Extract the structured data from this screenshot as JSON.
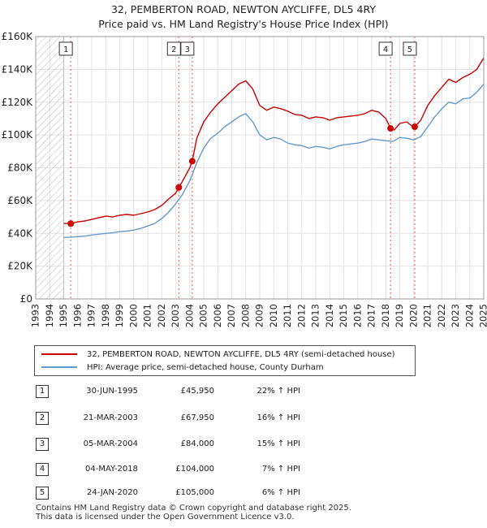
{
  "chart_data": {
    "type": "line",
    "title": "32, PEMBERTON ROAD, NEWTON AYCLIFFE, DL5 4RY",
    "subtitle": "Price paid vs. HM Land Registry's House Price Index (HPI)",
    "ylim": [
      0,
      160000
    ],
    "xlim": [
      1993,
      2025
    ],
    "y_ticks": [
      0,
      20000,
      40000,
      60000,
      80000,
      100000,
      120000,
      140000,
      160000
    ],
    "y_tick_labels": [
      "£0",
      "£20K",
      "£40K",
      "£60K",
      "£80K",
      "£100K",
      "£120K",
      "£140K",
      "£160K"
    ],
    "x_ticks": [
      1993,
      1994,
      1995,
      1996,
      1997,
      1998,
      1999,
      2000,
      2001,
      2002,
      2003,
      2004,
      2005,
      2006,
      2007,
      2008,
      2009,
      2010,
      2011,
      2012,
      2013,
      2014,
      2015,
      2016,
      2017,
      2018,
      2019,
      2020,
      2021,
      2022,
      2023,
      2024,
      2025
    ],
    "x_tick_labels": [
      "1993",
      "1994",
      "1995",
      "1996",
      "1997",
      "1998",
      "1999",
      "2000",
      "2001",
      "2002",
      "2003",
      "2004",
      "2005",
      "2006",
      "2007",
      "2008",
      "2009",
      "2010",
      "2011",
      "2012",
      "2013",
      "2014",
      "2015",
      "2016",
      "2017",
      "2018",
      "2019",
      "2020",
      "2021",
      "2022",
      "2023",
      "2024",
      "2025"
    ],
    "hatched_region": [
      1993,
      1995.0
    ],
    "series": [
      {
        "name": "32, PEMBERTON ROAD, NEWTON AYCLIFFE, DL5 4RY (semi-detached house)",
        "color": "#cc0000",
        "x": [
          1995.0,
          1995.5,
          1996.0,
          1996.5,
          1997.0,
          1997.5,
          1998.0,
          1998.5,
          1999.0,
          1999.5,
          2000.0,
          2000.5,
          2001.0,
          2001.5,
          2002.0,
          2002.5,
          2003.0,
          2003.22,
          2003.5,
          2004.0,
          2004.18,
          2004.5,
          2005.0,
          2005.5,
          2006.0,
          2006.5,
          2007.0,
          2007.5,
          2008.0,
          2008.5,
          2009.0,
          2009.5,
          2010.0,
          2010.5,
          2011.0,
          2011.5,
          2012.0,
          2012.5,
          2013.0,
          2013.5,
          2014.0,
          2014.5,
          2015.0,
          2015.5,
          2016.0,
          2016.5,
          2017.0,
          2017.5,
          2018.0,
          2018.34,
          2018.6,
          2019.0,
          2019.5,
          2020.0,
          2020.07,
          2020.5,
          2021.0,
          2021.5,
          2022.0,
          2022.5,
          2023.0,
          2023.5,
          2024.0,
          2024.5,
          2025.0
        ],
        "values": [
          46000,
          45950,
          47000,
          47500,
          48500,
          49500,
          50500,
          50000,
          51000,
          51500,
          51000,
          52000,
          53000,
          54500,
          57000,
          61000,
          64500,
          67950,
          72000,
          80000,
          84000,
          98000,
          108000,
          114000,
          119000,
          123000,
          127000,
          131000,
          133000,
          128000,
          118000,
          115000,
          117000,
          116000,
          114500,
          112500,
          112000,
          110000,
          111000,
          110500,
          109000,
          110500,
          111000,
          111500,
          112000,
          113000,
          115000,
          114000,
          110000,
          104000,
          103000,
          107000,
          108000,
          104500,
          105000,
          109000,
          118000,
          124000,
          129000,
          134000,
          132000,
          135000,
          137000,
          140000,
          147000
        ]
      },
      {
        "name": "HPI: Average price, semi-detached house, County Durham",
        "color": "#6699cc",
        "x": [
          1995.0,
          1995.5,
          1996.0,
          1996.5,
          1997.0,
          1997.5,
          1998.0,
          1998.5,
          1999.0,
          1999.5,
          2000.0,
          2000.5,
          2001.0,
          2001.5,
          2002.0,
          2002.5,
          2003.0,
          2003.5,
          2004.0,
          2004.5,
          2005.0,
          2005.5,
          2006.0,
          2006.5,
          2007.0,
          2007.5,
          2008.0,
          2008.5,
          2009.0,
          2009.5,
          2010.0,
          2010.5,
          2011.0,
          2011.5,
          2012.0,
          2012.5,
          2013.0,
          2013.5,
          2014.0,
          2014.5,
          2015.0,
          2015.5,
          2016.0,
          2016.5,
          2017.0,
          2017.5,
          2018.0,
          2018.5,
          2019.0,
          2019.5,
          2020.0,
          2020.5,
          2021.0,
          2021.5,
          2022.0,
          2022.5,
          2023.0,
          2023.5,
          2024.0,
          2024.5,
          2025.0
        ],
        "values": [
          37500,
          37600,
          38000,
          38300,
          39000,
          39500,
          40000,
          40300,
          41000,
          41300,
          42000,
          43000,
          44500,
          46000,
          49000,
          53000,
          58000,
          64000,
          72000,
          83000,
          92000,
          98000,
          101000,
          105000,
          108000,
          111000,
          113000,
          108000,
          100000,
          97000,
          98500,
          97500,
          95000,
          94000,
          93500,
          92000,
          93000,
          92500,
          91500,
          93000,
          94000,
          94500,
          95000,
          96000,
          97500,
          97000,
          96500,
          96000,
          98500,
          98000,
          97000,
          99000,
          105000,
          111000,
          116000,
          120000,
          119000,
          122000,
          122500,
          126000,
          131000
        ]
      }
    ],
    "transactions": [
      {
        "num": "1",
        "x": 1995.5,
        "price": 45950
      },
      {
        "num": "2",
        "x": 2003.22,
        "price": 67950
      },
      {
        "num": "3",
        "x": 2004.18,
        "price": 84000
      },
      {
        "num": "4",
        "x": 2018.34,
        "price": 104000
      },
      {
        "num": "5",
        "x": 2020.07,
        "price": 105000
      }
    ]
  },
  "legend": {
    "line1": "32, PEMBERTON ROAD, NEWTON AYCLIFFE, DL5 4RY (semi-detached house)",
    "line2": "HPI: Average price, semi-detached house, County Durham"
  },
  "table": [
    {
      "num": "1",
      "date": "30-JUN-1995",
      "price": "£45,950",
      "hpi": "22% ↑ HPI"
    },
    {
      "num": "2",
      "date": "21-MAR-2003",
      "price": "£67,950",
      "hpi": "16% ↑ HPI"
    },
    {
      "num": "3",
      "date": "05-MAR-2004",
      "price": "£84,000",
      "hpi": "15% ↑ HPI"
    },
    {
      "num": "4",
      "date": "04-MAY-2018",
      "price": "£104,000",
      "hpi": "7% ↑ HPI"
    },
    {
      "num": "5",
      "date": "24-JAN-2020",
      "price": "£105,000",
      "hpi": "6% ↑ HPI"
    }
  ],
  "footer": {
    "line1": "Contains HM Land Registry data © Crown copyright and database right 2025.",
    "line2": "This data is licensed under the Open Government Licence v3.0."
  }
}
